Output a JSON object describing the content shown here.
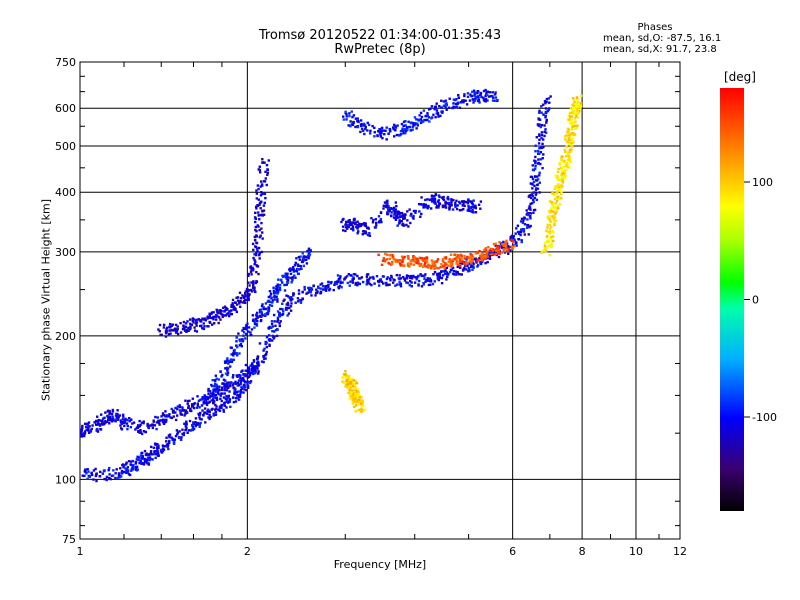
{
  "chart_data": {
    "type": "scatter",
    "title": "Tromsø 20120522 01:34:00-01:35:43",
    "subtitle": "RwPretec (8p)",
    "xlabel": "Frequency [MHz]",
    "ylabel": "Stationary phase Virtual Height [km]",
    "x_scale": "log",
    "y_scale": "log",
    "xlim": [
      1,
      12
    ],
    "ylim": [
      75,
      750
    ],
    "grid": true,
    "x_ticks": [
      1,
      2,
      6,
      8,
      10,
      12
    ],
    "x_tick_labels": [
      "1",
      "2",
      "6",
      "8",
      "10",
      "12"
    ],
    "y_ticks": [
      75,
      100,
      200,
      300,
      400,
      500,
      600,
      750
    ],
    "y_tick_labels": [
      "75",
      "100",
      "200",
      "300",
      "400",
      "500",
      "600",
      "750"
    ],
    "phases_header": "Phases",
    "phases_line1": "mean, sd,O: -87.5, 16.1",
    "phases_line2": "mean, sd,X:  91.7, 23.8",
    "colorbar": {
      "title": "[deg]",
      "range": [
        -180,
        180
      ],
      "ticks": [
        100,
        0,
        -100
      ],
      "tick_labels": [
        "100",
        "0",
        "-100"
      ]
    },
    "traces": [
      {
        "note_phase": -105,
        "points": [
          [
            1.0,
            103
          ],
          [
            1.1,
            102
          ],
          [
            1.2,
            104
          ],
          [
            1.25,
            107
          ],
          [
            1.3,
            110
          ],
          [
            1.35,
            113
          ],
          [
            1.4,
            117
          ],
          [
            1.5,
            124
          ],
          [
            1.6,
            130
          ],
          [
            1.7,
            137
          ],
          [
            1.8,
            143
          ],
          [
            1.9,
            150
          ],
          [
            2.0,
            160
          ],
          [
            2.1,
            178
          ],
          [
            2.2,
            200
          ],
          [
            2.3,
            222
          ],
          [
            2.4,
            238
          ],
          [
            2.6,
            248
          ],
          [
            2.8,
            255
          ],
          [
            3.0,
            262
          ],
          [
            3.3,
            262
          ],
          [
            3.6,
            262
          ],
          [
            3.9,
            260
          ],
          [
            4.2,
            262
          ],
          [
            4.5,
            266
          ],
          [
            4.8,
            275
          ],
          [
            5.1,
            285
          ],
          [
            5.4,
            295
          ],
          [
            5.7,
            302
          ],
          [
            6.0,
            315
          ],
          [
            6.3,
            335
          ],
          [
            6.5,
            375
          ],
          [
            6.6,
            420
          ],
          [
            6.7,
            480
          ],
          [
            6.8,
            560
          ],
          [
            6.9,
            625
          ]
        ]
      },
      {
        "note_phase": -110,
        "points": [
          [
            1.0,
            125
          ],
          [
            1.05,
            128
          ],
          [
            1.1,
            133
          ],
          [
            1.15,
            137
          ],
          [
            1.2,
            131
          ],
          [
            1.3,
            128
          ],
          [
            1.4,
            133
          ],
          [
            1.5,
            139
          ],
          [
            1.6,
            143
          ],
          [
            1.7,
            148
          ],
          [
            1.8,
            153
          ],
          [
            1.9,
            160
          ],
          [
            2.0,
            168
          ],
          [
            2.1,
            175
          ]
        ]
      },
      {
        "note_phase": -115,
        "points": [
          [
            1.4,
            205
          ],
          [
            1.5,
            207
          ],
          [
            1.6,
            210
          ],
          [
            1.7,
            215
          ],
          [
            1.8,
            222
          ],
          [
            1.9,
            230
          ],
          [
            2.0,
            242
          ],
          [
            2.05,
            260
          ],
          [
            2.08,
            300
          ],
          [
            2.1,
            350
          ],
          [
            2.12,
            400
          ],
          [
            2.15,
            480
          ]
        ]
      },
      {
        "note_phase": -100,
        "points": [
          [
            1.7,
            150
          ],
          [
            1.8,
            165
          ],
          [
            1.9,
            185
          ],
          [
            2.0,
            205
          ],
          [
            2.1,
            220
          ],
          [
            2.2,
            235
          ],
          [
            2.3,
            255
          ],
          [
            2.4,
            270
          ],
          [
            2.5,
            285
          ],
          [
            2.6,
            300
          ]
        ]
      },
      {
        "note_phase": -100,
        "points": [
          [
            3.0,
            580
          ],
          [
            3.2,
            550
          ],
          [
            3.5,
            530
          ],
          [
            3.8,
            540
          ],
          [
            4.0,
            560
          ],
          [
            4.3,
            585
          ],
          [
            4.6,
            610
          ],
          [
            5.0,
            630
          ],
          [
            5.3,
            640
          ],
          [
            5.6,
            635
          ]
        ]
      },
      {
        "note_phase": 90,
        "points": [
          [
            6.9,
            300
          ],
          [
            7.0,
            325
          ],
          [
            7.1,
            360
          ],
          [
            7.2,
            390
          ],
          [
            7.3,
            420
          ],
          [
            7.4,
            450
          ],
          [
            7.5,
            480
          ],
          [
            7.6,
            520
          ],
          [
            7.7,
            560
          ],
          [
            7.8,
            600
          ],
          [
            7.85,
            625
          ]
        ]
      },
      {
        "note_phase": 150,
        "points": [
          [
            3.5,
            290
          ],
          [
            3.8,
            288
          ],
          [
            4.0,
            285
          ],
          [
            4.2,
            284
          ],
          [
            4.5,
            285
          ],
          [
            4.8,
            288
          ],
          [
            5.1,
            292
          ],
          [
            5.4,
            298
          ],
          [
            5.7,
            305
          ],
          [
            6.0,
            312
          ]
        ]
      },
      {
        "note_phase": 95,
        "points": [
          [
            3.0,
            165
          ],
          [
            3.05,
            160
          ],
          [
            3.1,
            155
          ],
          [
            3.12,
            150
          ],
          [
            3.15,
            145
          ],
          [
            3.2,
            142
          ]
        ]
      },
      {
        "note_phase": -110,
        "points": [
          [
            3.0,
            340
          ],
          [
            3.1,
            345
          ],
          [
            3.3,
            330
          ],
          [
            3.6,
            375
          ],
          [
            3.7,
            360
          ],
          [
            3.8,
            345
          ],
          [
            4.2,
            380
          ],
          [
            4.4,
            385
          ],
          [
            4.6,
            378
          ],
          [
            5.0,
            375
          ],
          [
            5.2,
            372
          ]
        ]
      }
    ]
  }
}
